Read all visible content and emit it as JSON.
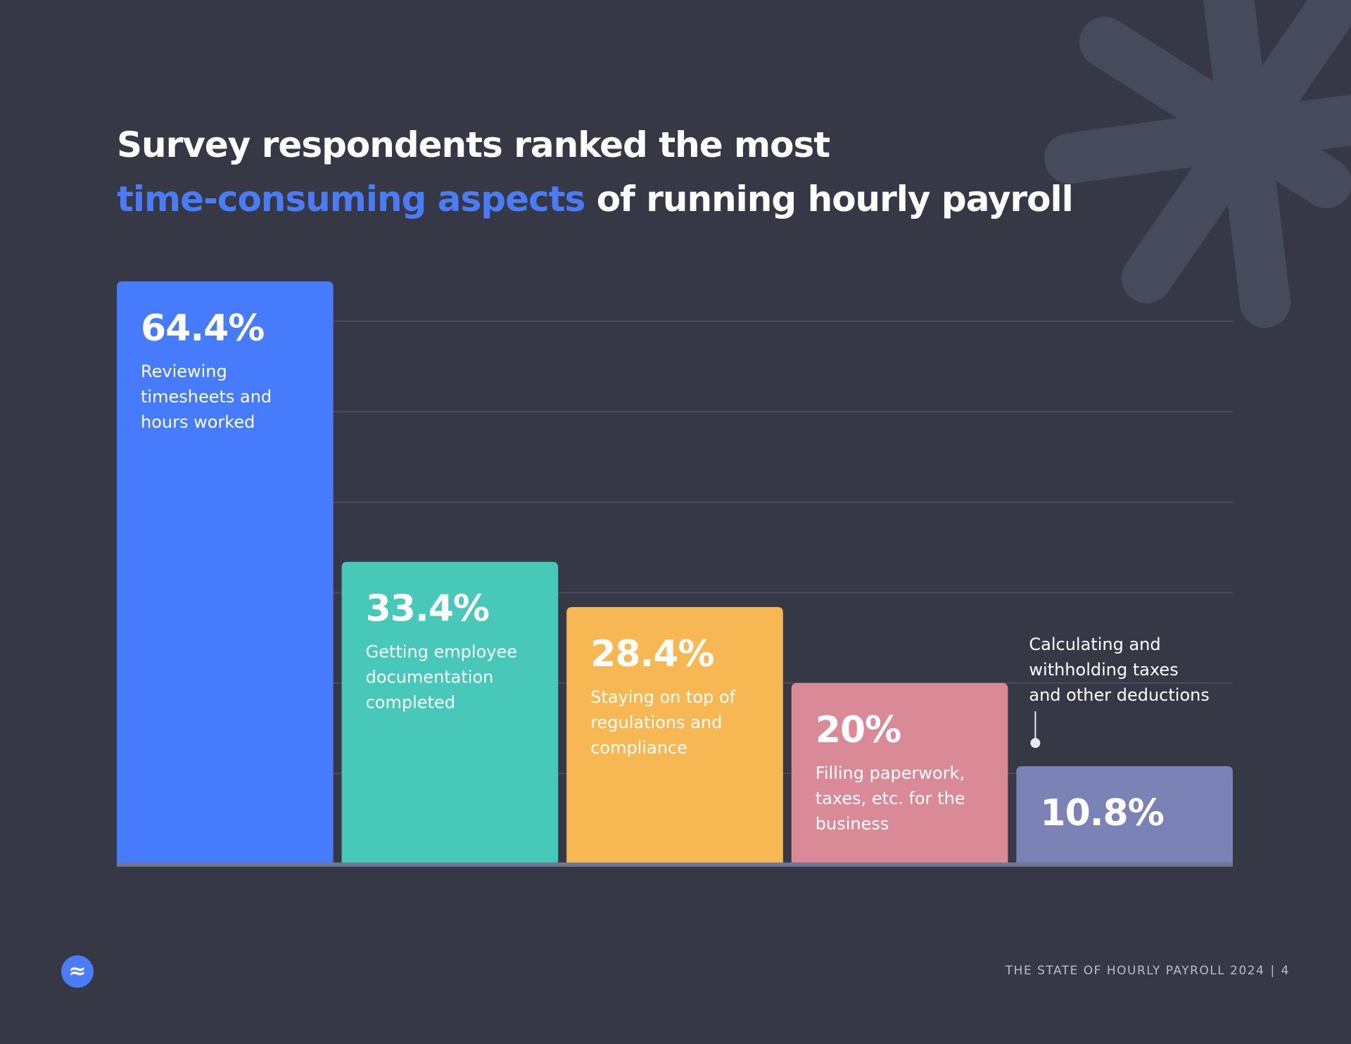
{
  "title": {
    "line1": "Survey respondents ranked the most",
    "line2_accent": "time-consuming aspects",
    "line2_rest": "of running hourly payroll"
  },
  "chart_data": {
    "type": "bar",
    "ylim": [
      0,
      70
    ],
    "grid": true,
    "categories": [
      "Reviewing timesheets and hours worked",
      "Getting employee documentation completed",
      "Staying on top of regulations and compliance",
      "Filling paperwork, taxes, etc. for the business",
      "Calculating and withholding taxes and other deductions"
    ],
    "values": [
      64.4,
      33.4,
      28.4,
      20,
      10.8
    ],
    "value_labels": [
      "64.4%",
      "33.4%",
      "28.4%",
      "20%",
      "10.8%"
    ],
    "label_lines": [
      [
        "Reviewing",
        "timesheets and",
        "hours worked"
      ],
      [
        "Getting employee",
        "documentation",
        "completed"
      ],
      [
        "Staying on top of",
        "regulations and",
        "compliance"
      ],
      [
        "Filling paperwork,",
        "taxes, etc. for the",
        "business"
      ],
      [
        "Calculating and",
        "withholding taxes",
        "and other deductions"
      ]
    ],
    "colors": [
      "#467bfb",
      "#47c8b9",
      "#f7b853",
      "#d98a96",
      "#7b82b6"
    ]
  },
  "colors": {
    "background": "#363945",
    "accent": "#4a7cf8",
    "decoration": "#454b5a",
    "gridline": "#4a4e5c",
    "baseline": "#6e7894"
  },
  "logo": {
    "glyph": "≈",
    "icon": "wave-logo-icon"
  },
  "footer": {
    "text": "THE STATE OF HOURLY PAYROLL 2024",
    "separator": "|",
    "page": "4"
  }
}
